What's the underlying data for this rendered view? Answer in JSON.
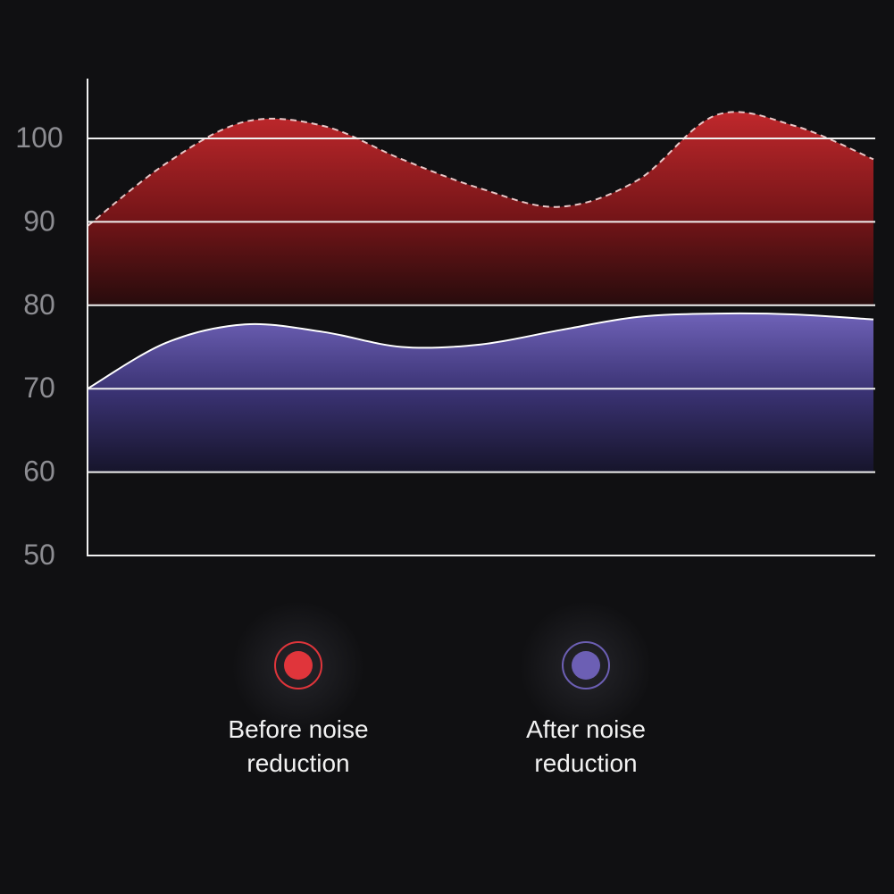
{
  "chart_data": {
    "type": "area",
    "title": "",
    "xlabel": "",
    "ylabel": "",
    "ylim": [
      50,
      100
    ],
    "yticks": [
      100,
      90,
      80,
      70,
      60,
      50
    ],
    "grid": true,
    "x": [
      0,
      1,
      2,
      3,
      4,
      5,
      6,
      7,
      8,
      9,
      10
    ],
    "series": [
      {
        "name": "Before noise reduction",
        "color": "#e0353b",
        "values": [
          89.5,
          97,
          102,
          101.5,
          97.5,
          94,
          91.8,
          95,
          102.8,
          101.5,
          97.5
        ],
        "baseline": 80,
        "line_style": "dashed"
      },
      {
        "name": "After noise reduction",
        "color": "#6c5fb4",
        "values": [
          70,
          75.5,
          77.7,
          76.8,
          75,
          75.3,
          77,
          78.6,
          79,
          78.9,
          78.3
        ],
        "baseline": 60,
        "line_style": "solid"
      }
    ],
    "legend_position": "bottom"
  },
  "legend": {
    "before_line1": "Before noise",
    "before_line2": "reduction",
    "after_line1": "After noise",
    "after_line2": "reduction",
    "before_color": "#e0353b",
    "after_color": "#6c5fb4"
  }
}
